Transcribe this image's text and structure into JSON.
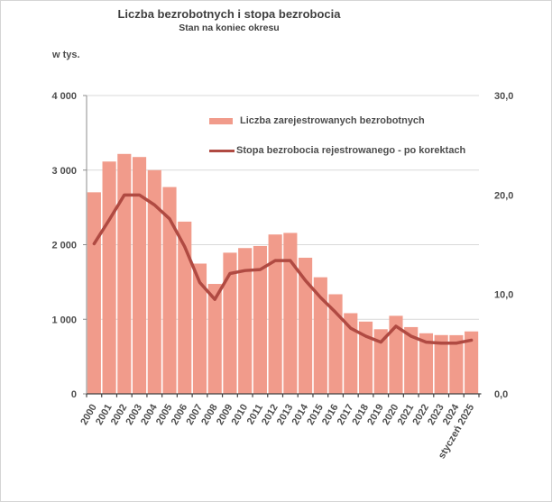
{
  "title": "Liczba bezrobotnych i stopa bezrobocia",
  "subtitle": "Stan na koniec okresu",
  "left_axis_unit": "w tys.",
  "colors": {
    "bar": "#F19B8B",
    "line": "#B04A42",
    "gridline": "#D9D9D9",
    "value_axis": "#8C8C8C",
    "category_axis": "#404040",
    "label_text": "#4D4D4D"
  },
  "chart_data": {
    "type": "bar",
    "subtype": "bar+line dual axis",
    "categories": [
      "2000",
      "2001",
      "2002",
      "2003",
      "2004",
      "2005",
      "2006",
      "2007",
      "2008",
      "2009",
      "2010",
      "2011",
      "2012",
      "2013",
      "2014",
      "2015",
      "2016",
      "2017",
      "2018",
      "2019",
      "2020",
      "2021",
      "2022",
      "2023",
      "2024",
      "styczeń 2025"
    ],
    "series": [
      {
        "name": "Liczba zarejestrowanych bezrobotnych",
        "type": "bar",
        "axis": "left",
        "color": "#F19B8B",
        "values": [
          2702.6,
          3115.1,
          3217.0,
          3175.7,
          2999.6,
          2773.0,
          2309.4,
          1746.6,
          1473.8,
          1892.7,
          1954.7,
          1982.7,
          2136.8,
          2157.9,
          1825.2,
          1563.3,
          1335.2,
          1081.7,
          968.9,
          866.4,
          1046.4,
          895.2,
          812.3,
          788.2,
          786.8,
          837.1
        ]
      },
      {
        "name": "Stopa bezrobocia rejestrowanego - po korektach",
        "type": "line",
        "axis": "right",
        "color": "#B04A42",
        "values": [
          15.1,
          17.5,
          20.0,
          20.0,
          19.0,
          17.6,
          14.8,
          11.2,
          9.5,
          12.1,
          12.4,
          12.5,
          13.4,
          13.4,
          11.4,
          9.7,
          8.2,
          6.6,
          5.8,
          5.2,
          6.8,
          5.8,
          5.2,
          5.1,
          5.1,
          5.4
        ]
      }
    ],
    "left_axis": {
      "min": 0,
      "max": 4000,
      "tick_values": [
        0,
        1000,
        2000,
        3000,
        4000
      ],
      "tick_labels": [
        "0",
        "1 000",
        "2 000",
        "3 000",
        "4 000"
      ]
    },
    "right_axis": {
      "min": 0,
      "max": 30,
      "tick_values": [
        0,
        10,
        20,
        30
      ],
      "tick_labels": [
        "0,0",
        "10,0",
        "20,0",
        "30,0"
      ]
    },
    "grid": true,
    "legend_position": "inside-top-center"
  }
}
